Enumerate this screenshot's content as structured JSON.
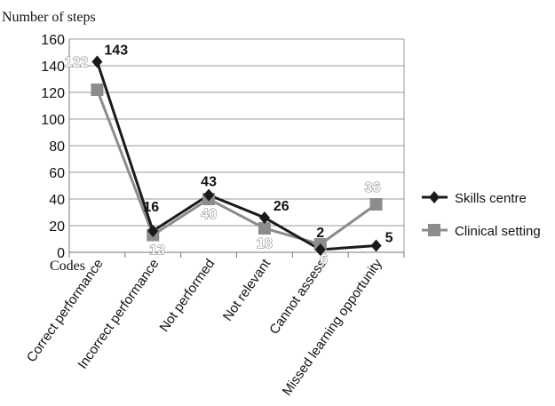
{
  "chart_data": {
    "type": "line",
    "ylabel": "Number of steps",
    "xlabel": "Codes",
    "categories": [
      "Correct performance",
      "Incorrect performance",
      "Not performed",
      "Not relevant",
      "Cannot assess",
      "Missed learning opportunity"
    ],
    "ylim": [
      0,
      160
    ],
    "yticks": [
      0,
      20,
      40,
      60,
      80,
      100,
      120,
      140,
      160
    ],
    "grid": true,
    "legend_position": "right",
    "series": [
      {
        "name": "Skills centre",
        "values": [
          143,
          16,
          43,
          26,
          2,
          5
        ],
        "color": "#1a1a1a",
        "marker": "diamond"
      },
      {
        "name": "Clinical setting",
        "values": [
          122,
          13,
          40,
          18,
          6,
          36
        ],
        "color": "#8c8c8c",
        "marker": "square"
      }
    ]
  }
}
